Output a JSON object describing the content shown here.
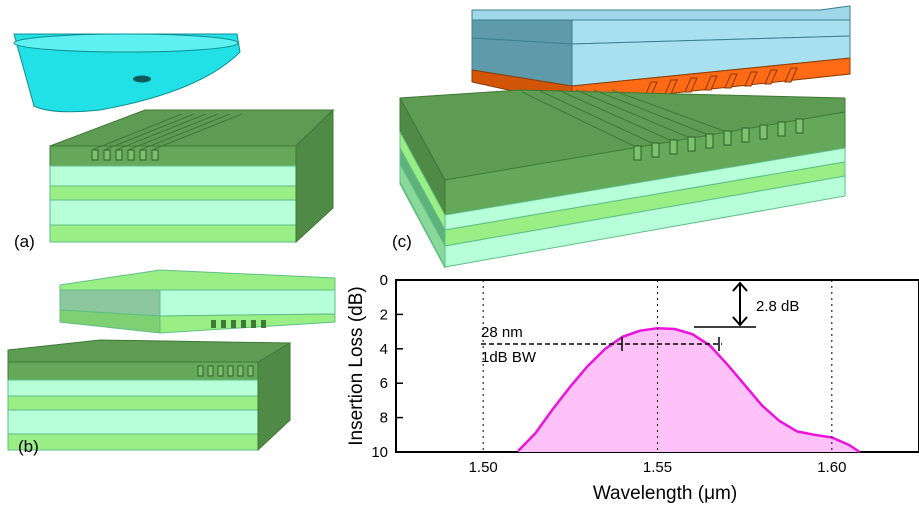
{
  "panels": {
    "a": "(a)",
    "b": "(b)",
    "c": "(c)"
  },
  "colors": {
    "cladding_top": "#66a85a",
    "core_light": "#b7ffd9",
    "substrate": "#9aee86",
    "fiber": "#21e0e6",
    "chip_top": "#7fc4d7",
    "chip_bottom": "#ff6a14",
    "curve": "#ee11dd",
    "fill": "#ffc2f8"
  },
  "chart_data": {
    "type": "area",
    "xlabel": "Wavelength (μm)",
    "ylabel": "Insertion Loss (dB)",
    "xlim": [
      1.475,
      1.625
    ],
    "ylim": [
      10,
      0
    ],
    "xticks": [
      "1.50",
      "1.55",
      "1.60"
    ],
    "yticks": [
      "0",
      "2",
      "4",
      "6",
      "8",
      "10"
    ],
    "series": [
      {
        "x": [
          1.51,
          1.515,
          1.52,
          1.525,
          1.53,
          1.535,
          1.54,
          1.545,
          1.55,
          1.555,
          1.56,
          1.565,
          1.57,
          1.575,
          1.58,
          1.585,
          1.59,
          1.595,
          1.6,
          1.605,
          1.608
        ],
        "y": [
          9.95,
          8.9,
          7.5,
          6.2,
          5.0,
          4.0,
          3.3,
          2.95,
          2.8,
          2.85,
          3.15,
          3.8,
          4.9,
          6.1,
          7.3,
          8.2,
          8.8,
          9.0,
          9.15,
          9.6,
          10.0
        ]
      }
    ],
    "annotations": {
      "peak_label": "2.8 dB",
      "bw_value": "28 nm",
      "bw_label": "1dB BW",
      "peak_loss": 2.8,
      "bw_start": 1.538,
      "bw_end": 1.566,
      "bw_level": 3.8
    }
  }
}
